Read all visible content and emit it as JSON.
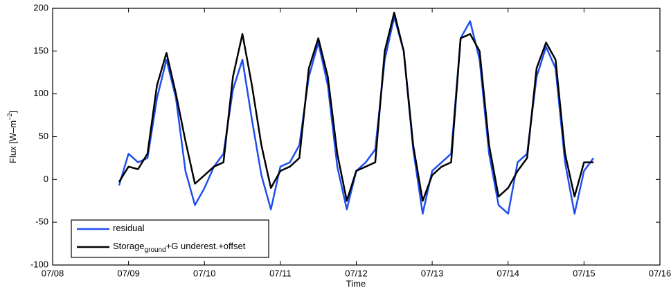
{
  "chart_data": {
    "type": "line",
    "xlabel": "Time",
    "ylabel": {
      "text": "Flux [W–m",
      "sup": "−2",
      "end": "]"
    },
    "x": [
      8.875,
      9.0,
      9.125,
      9.25,
      9.375,
      9.5,
      9.625,
      9.75,
      9.875,
      10.0,
      10.125,
      10.25,
      10.375,
      10.5,
      10.625,
      10.75,
      10.875,
      11.0,
      11.125,
      11.25,
      11.375,
      11.5,
      11.625,
      11.75,
      11.875,
      12.0,
      12.125,
      12.25,
      12.375,
      12.5,
      12.625,
      12.75,
      12.875,
      13.0,
      13.125,
      13.25,
      13.375,
      13.5,
      13.625,
      13.75,
      13.875,
      14.0,
      14.125,
      14.25,
      14.375,
      14.5,
      14.625,
      14.75,
      14.875,
      15.0,
      15.125
    ],
    "series": [
      {
        "name": "residual",
        "color": "#1f4ef0",
        "values": [
          -7,
          30,
          20,
          25,
          95,
          140,
          95,
          10,
          -30,
          -10,
          15,
          30,
          105,
          140,
          70,
          5,
          -35,
          15,
          20,
          40,
          120,
          160,
          110,
          15,
          -35,
          10,
          20,
          35,
          140,
          190,
          150,
          35,
          -40,
          10,
          20,
          30,
          165,
          185,
          140,
          30,
          -30,
          -40,
          20,
          30,
          120,
          155,
          130,
          20,
          -40,
          10,
          25
        ]
      },
      {
        "name": "Storage",
        "name_sub": "ground",
        "name_end": "+G underest.+offset",
        "color": "#000000",
        "values": [
          -3,
          15,
          12,
          30,
          110,
          148,
          100,
          45,
          -5,
          5,
          15,
          20,
          120,
          170,
          110,
          40,
          -10,
          10,
          15,
          25,
          130,
          165,
          120,
          30,
          -25,
          10,
          15,
          20,
          150,
          195,
          150,
          40,
          -25,
          5,
          15,
          20,
          165,
          170,
          150,
          40,
          -20,
          -10,
          10,
          25,
          130,
          160,
          140,
          30,
          -20,
          20,
          20
        ]
      }
    ],
    "xlim": [
      8,
      16
    ],
    "xticks": [
      {
        "value": 8,
        "label": "07/08"
      },
      {
        "value": 9,
        "label": "07/09"
      },
      {
        "value": 10,
        "label": "07/10"
      },
      {
        "value": 11,
        "label": "07/11"
      },
      {
        "value": 12,
        "label": "07/12"
      },
      {
        "value": 13,
        "label": "07/13"
      },
      {
        "value": 14,
        "label": "07/14"
      },
      {
        "value": 15,
        "label": "07/15"
      },
      {
        "value": 16,
        "label": "07/16"
      }
    ],
    "ylim": [
      -100,
      200
    ],
    "yticks": [
      -100,
      -50,
      0,
      50,
      100,
      150,
      200
    ],
    "grid": false,
    "legend": "lower left"
  }
}
